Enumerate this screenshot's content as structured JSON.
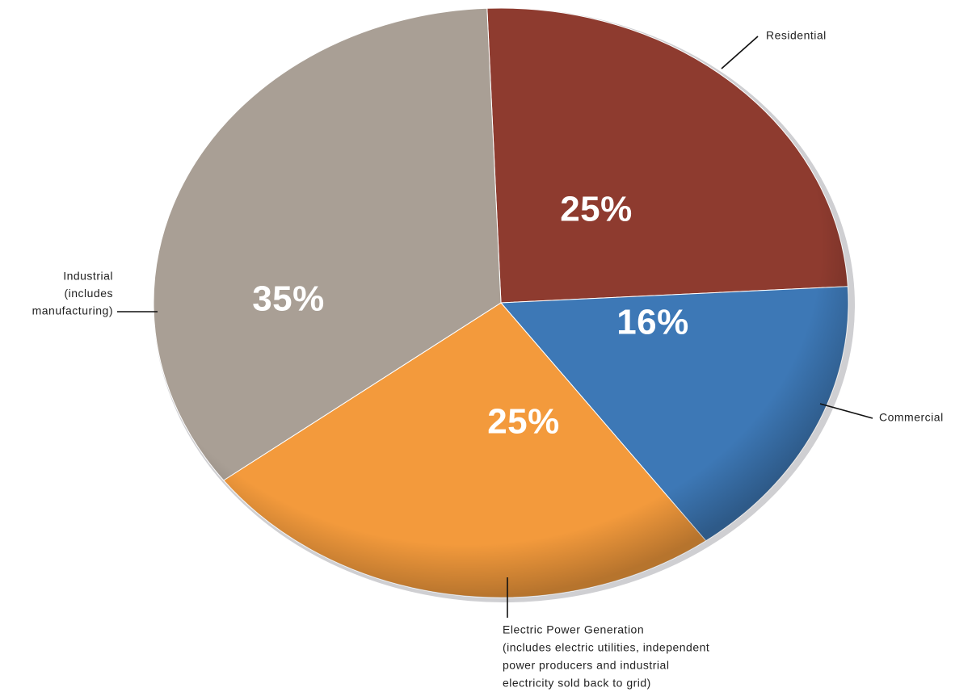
{
  "chart_data": {
    "type": "pie",
    "categories": [
      "Residential",
      "Commercial",
      "Electric Power Generation",
      "Industrial"
    ],
    "descriptions": [
      null,
      null,
      [
        "(includes electric utilities, independent",
        "power producers and industrial",
        "electricity sold back to grid)"
      ],
      [
        "(includes",
        "manufacturing)"
      ]
    ],
    "values": [
      25,
      16,
      25,
      35
    ],
    "value_labels": [
      "25%",
      "16%",
      "25%",
      "35%"
    ],
    "colors": [
      "#8e3b2f",
      "#3d78b6",
      "#f39a3c",
      "#a99f95"
    ]
  }
}
